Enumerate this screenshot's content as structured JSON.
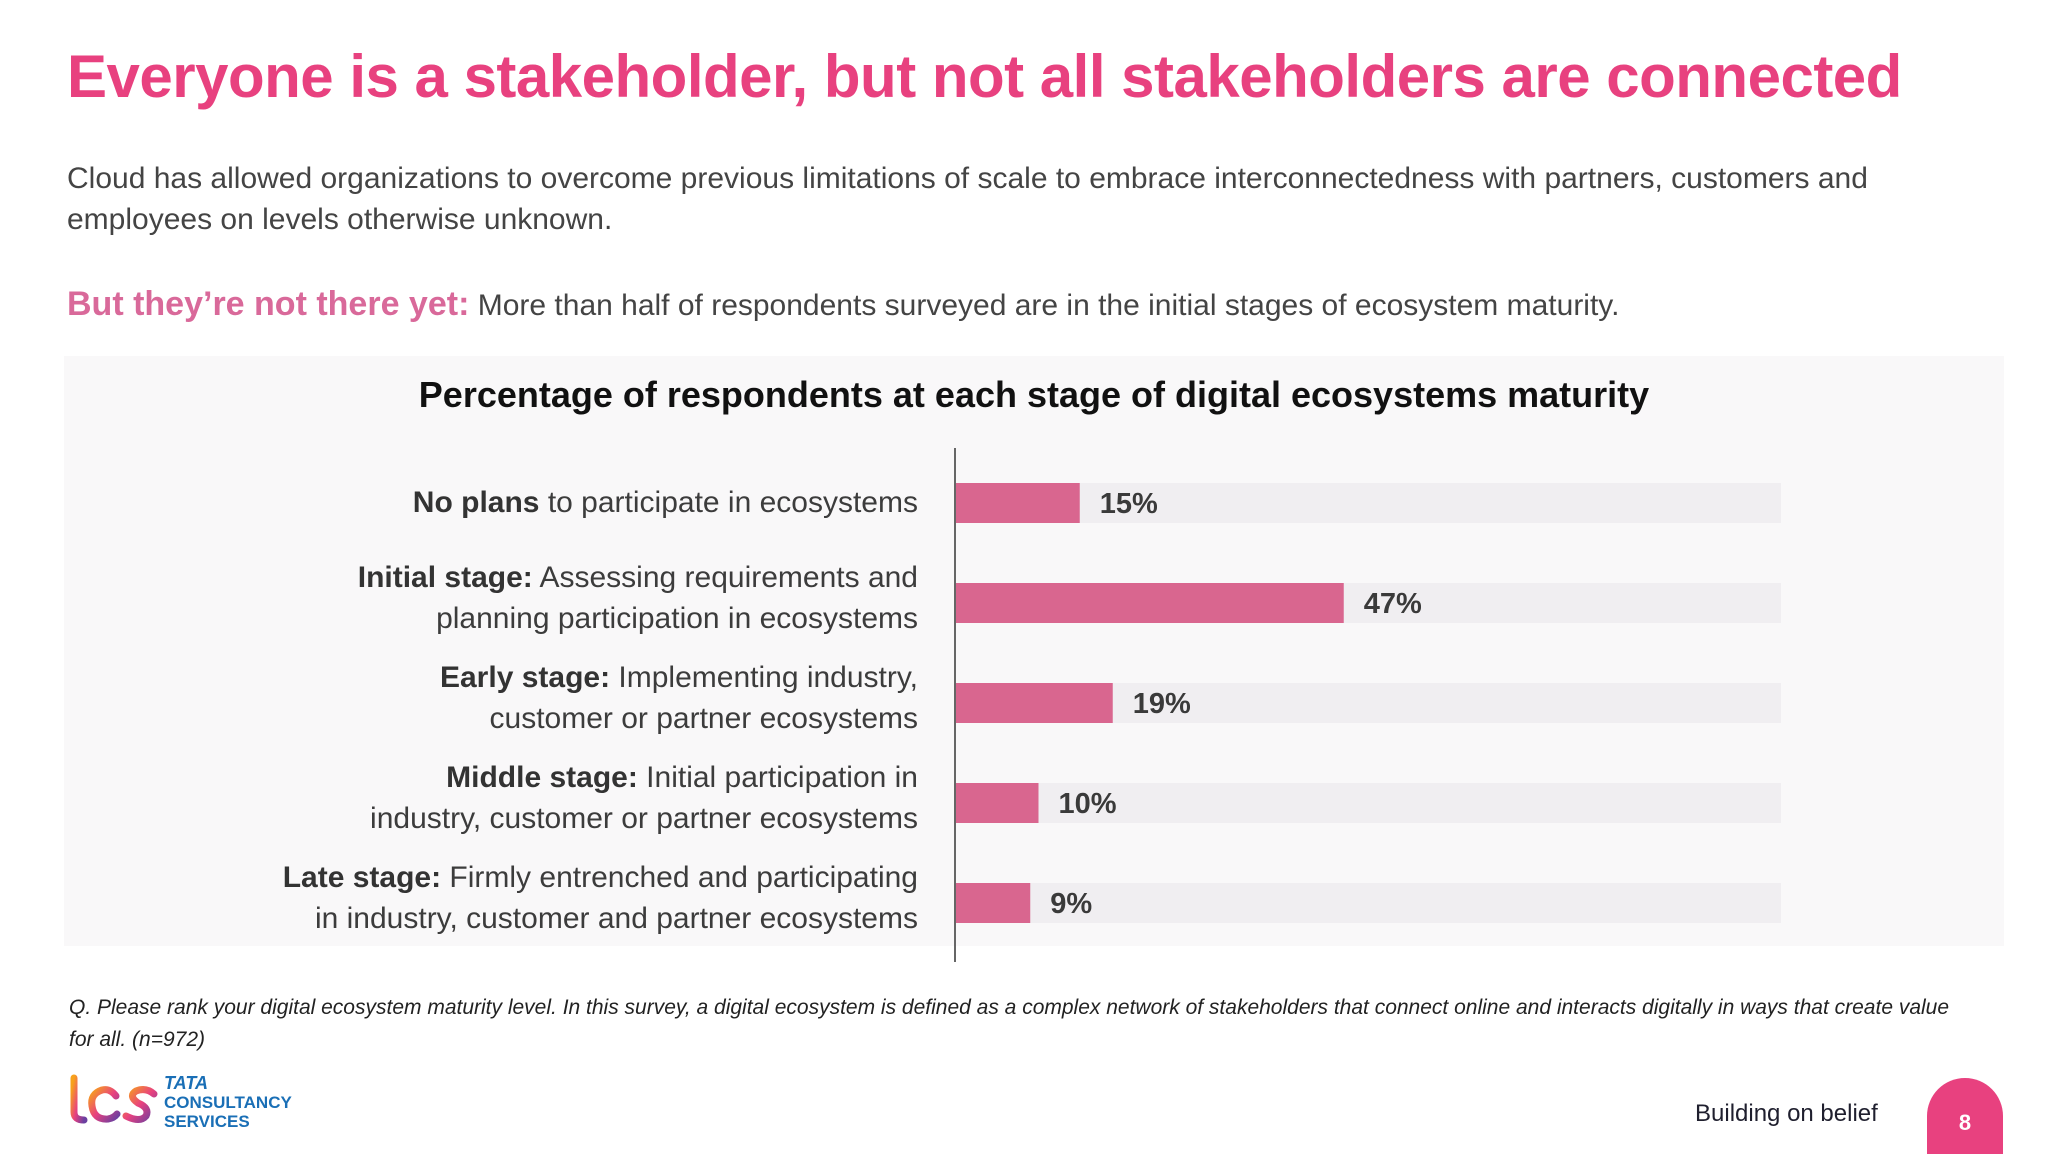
{
  "slide": {
    "title": "Everyone is a stakeholder, but not all stakeholders are connected",
    "intro": "Cloud has allowed organizations to overcome previous limitations of scale to embrace interconnectedness with partners, customers and employees on levels otherwise unknown.",
    "callout_lead": "But they’re not there yet:",
    "callout_text": "More than half of respondents surveyed are in the initial stages of ecosystem maturity.",
    "footnote": "Q. Please rank your digital ecosystem maturity level. In this survey, a digital ecosystem is defined as a complex network of stakeholders that connect online and interacts digitally in ways that create value for all. (n=972)",
    "tagline": "Building on belief",
    "page_number": "8",
    "logo": {
      "mark": "tcs",
      "line1": "TATA",
      "line2": "CONSULTANCY",
      "line3": "SERVICES"
    }
  },
  "colors": {
    "title": "#e8417f",
    "bar": "#d9668f",
    "track": "#f0eef1",
    "accent": "#e8417f",
    "brand_blue": "#1a6fb6"
  },
  "chart_data": {
    "type": "bar",
    "orientation": "horizontal",
    "title": "Percentage of respondents at each stage of digital ecosystems maturity",
    "categories": [
      {
        "bold": "No plans",
        "rest": [
          "to participate in ecosystems"
        ]
      },
      {
        "bold": "Initial stage:",
        "rest": [
          "Assessing requirements and",
          "planning participation in ecosystems"
        ]
      },
      {
        "bold": "Early stage:",
        "rest": [
          "Implementing industry,",
          "customer or partner ecosystems"
        ]
      },
      {
        "bold": "Middle stage:",
        "rest": [
          "Initial participation in",
          "industry, customer or partner ecosystems"
        ]
      },
      {
        "bold": "Late stage:",
        "rest": [
          "Firmly entrenched and participating",
          "in industry, customer and partner ecosystems"
        ]
      }
    ],
    "values": [
      15,
      47,
      19,
      10,
      9
    ],
    "data_labels": [
      "15%",
      "47%",
      "19%",
      "10%",
      "9%"
    ],
    "xlim": [
      0,
      100
    ],
    "grid": false,
    "legend": "none"
  }
}
